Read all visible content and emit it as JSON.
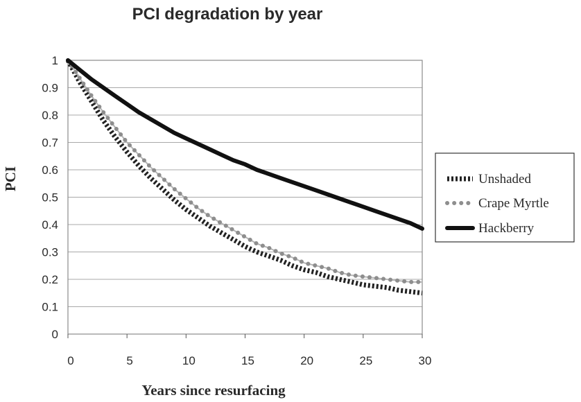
{
  "chart_data": {
    "type": "line",
    "title": "PCI degradation by year",
    "xlabel": "Years since resurfacing",
    "ylabel": "PCI",
    "xlim": [
      0,
      30
    ],
    "ylim": [
      0,
      1
    ],
    "x_ticks": [
      "0",
      "5",
      "10",
      "15",
      "20",
      "25",
      "30"
    ],
    "y_ticks": [
      "0",
      "0.1",
      "0.2",
      "0.3",
      "0.4",
      "0.5",
      "0.6",
      "0.7",
      "0.8",
      "0.9",
      "1"
    ],
    "grid": "horizontal",
    "legend_position": "right",
    "x": [
      0,
      1,
      2,
      3,
      4,
      5,
      6,
      7,
      8,
      9,
      10,
      11,
      12,
      13,
      14,
      15,
      16,
      17,
      18,
      19,
      20,
      21,
      22,
      23,
      24,
      25,
      26,
      27,
      28,
      29,
      30
    ],
    "series": [
      {
        "name": "Unshaded",
        "style": "dotted-thick",
        "color": "#222222",
        "values": [
          1.0,
          0.92,
          0.85,
          0.78,
          0.72,
          0.665,
          0.615,
          0.57,
          0.53,
          0.49,
          0.455,
          0.425,
          0.395,
          0.37,
          0.345,
          0.32,
          0.3,
          0.285,
          0.27,
          0.25,
          0.235,
          0.225,
          0.21,
          0.2,
          0.19,
          0.18,
          0.175,
          0.17,
          0.16,
          0.155,
          0.15
        ]
      },
      {
        "name": "Crape Myrtle",
        "style": "dots",
        "color": "#8e8e8e",
        "values": [
          1.0,
          0.935,
          0.87,
          0.81,
          0.755,
          0.7,
          0.655,
          0.61,
          0.57,
          0.53,
          0.495,
          0.46,
          0.43,
          0.405,
          0.38,
          0.355,
          0.33,
          0.315,
          0.295,
          0.28,
          0.26,
          0.25,
          0.24,
          0.225,
          0.215,
          0.21,
          0.205,
          0.2,
          0.195,
          0.19,
          0.19
        ]
      },
      {
        "name": "Hackberry",
        "style": "solid-thick",
        "color": "#111111",
        "values": [
          1.0,
          0.965,
          0.93,
          0.9,
          0.87,
          0.84,
          0.81,
          0.785,
          0.76,
          0.735,
          0.715,
          0.695,
          0.675,
          0.655,
          0.635,
          0.62,
          0.6,
          0.585,
          0.57,
          0.555,
          0.54,
          0.525,
          0.51,
          0.495,
          0.48,
          0.465,
          0.45,
          0.435,
          0.42,
          0.405,
          0.385
        ]
      }
    ]
  }
}
